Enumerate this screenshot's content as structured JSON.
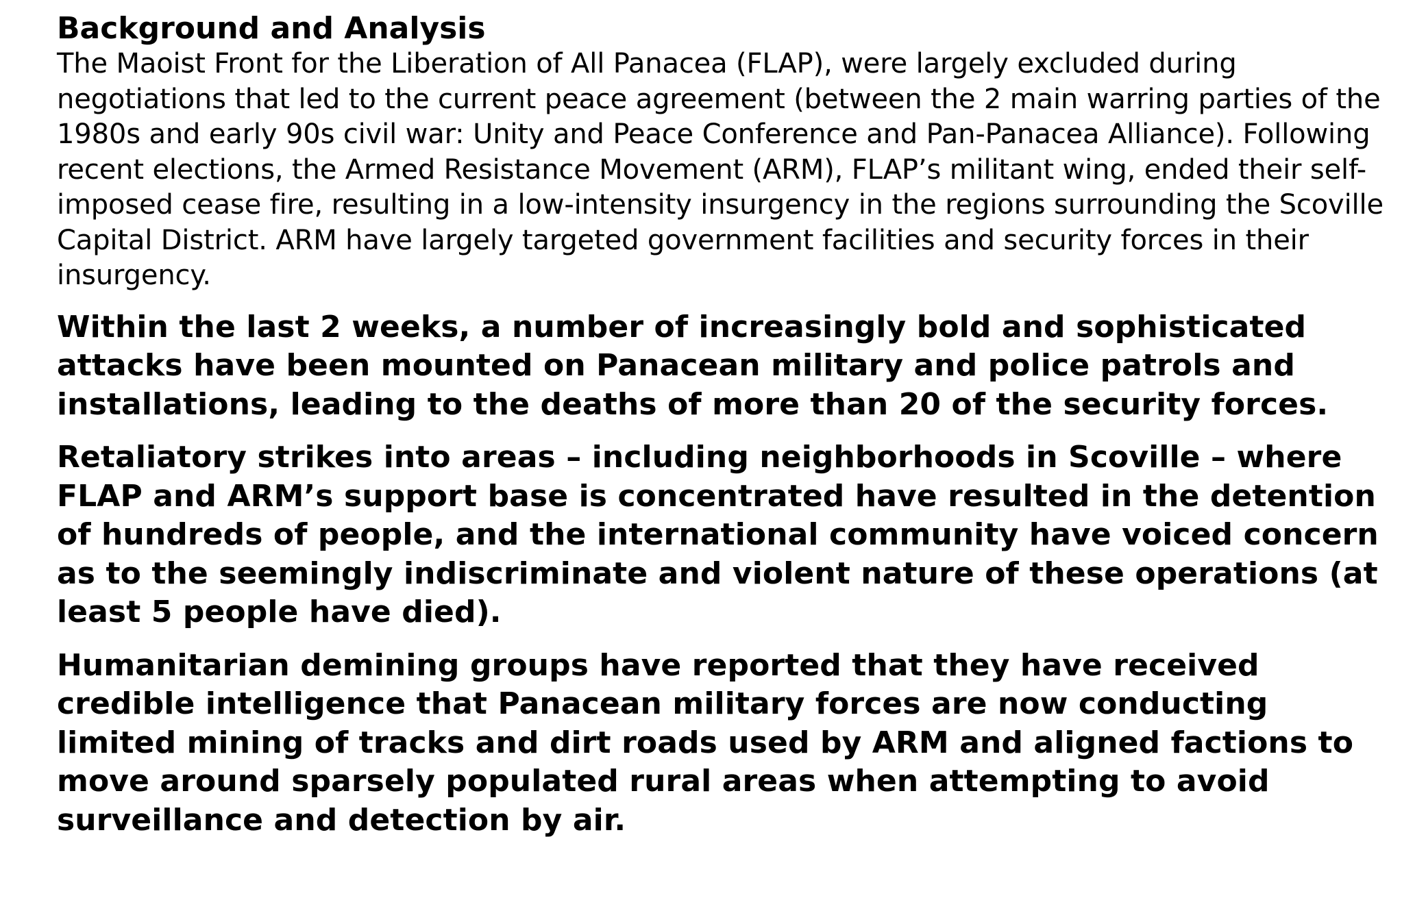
{
  "document": {
    "heading": "Background and Analysis",
    "intro": "The Maoist Front for the Liberation of All Panacea (FLAP), were largely excluded during negotiations that led to the current peace agreement (between the 2 main warring parties of the 1980s and early 90s civil war: Unity and Peace Conference and Pan-Panacea Alliance). Following recent elections, the Armed Resistance Movement (ARM), FLAP’s militant wing, ended their self-imposed cease fire, resulting in a low-intensity insurgency in the regions surrounding the Scoville Capital District. ARM have largely targeted government facilities and security forces in their insurgency.",
    "paragraphs": [
      "Within the last 2 weeks, a number of increasingly bold and sophisticated attacks have been mounted on Panacean military and police patrols and installations, leading to the deaths of more than 20 of the security forces.",
      "Retaliatory strikes into areas – including neighborhoods in Scoville – where FLAP and ARM’s support base is concentrated have resulted in the detention of hundreds of people, and the international community have voiced concern as to the seemingly indiscriminate and violent nature of these operations (at least 5 people have died).",
      "Humanitarian demining groups have reported that they have received credible intelligence that Panacean military forces are now conducting limited mining of tracks and dirt roads used by ARM and aligned factions to move around sparsely populated rural areas when attempting to avoid surveillance and detection by air."
    ]
  }
}
